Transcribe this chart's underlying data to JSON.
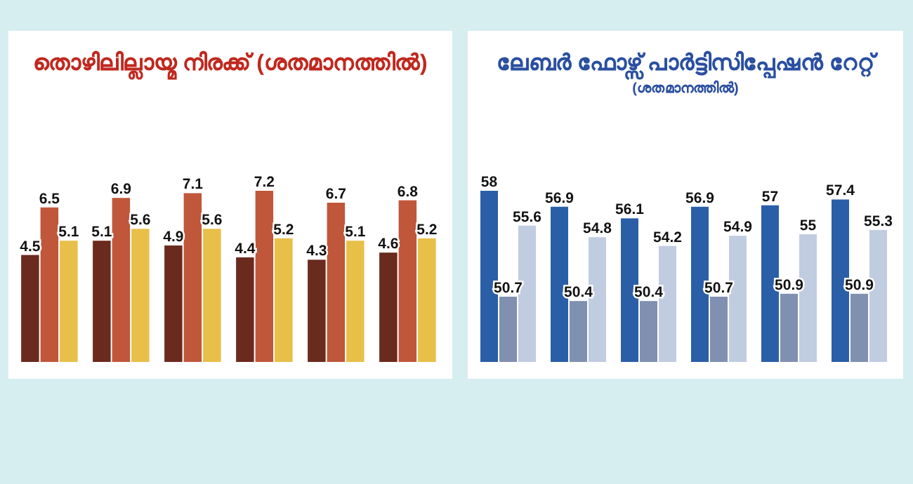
{
  "chart_data": [
    {
      "type": "bar",
      "title": "തൊഴിലില്ലായ്മ നിരക്ക് (ശതമാനത്തിൽ)",
      "categories": [
        null,
        null,
        null,
        null,
        null,
        null
      ],
      "ylim": [
        0,
        7.2
      ],
      "tick_labels": false,
      "data_labels": true,
      "series": [
        {
          "color": "#6b2a1e",
          "values": [
            4.5,
            5.1,
            4.9,
            4.4,
            4.3,
            4.6
          ]
        },
        {
          "color": "#c0573a",
          "values": [
            6.5,
            6.9,
            7.1,
            7.2,
            6.7,
            6.8
          ]
        },
        {
          "color": "#e8bf48",
          "values": [
            5.1,
            5.6,
            5.6,
            5.2,
            5.1,
            5.2
          ]
        }
      ]
    },
    {
      "type": "bar",
      "title": "ലേബർ ഫോഴ്സ് പാർട്ടിസിപ്പേഷൻ റേറ്റ്",
      "subtitle": "(ശതമാനത്തിൽ)",
      "categories": [
        null,
        null,
        null,
        null,
        null,
        null
      ],
      "ylim": [
        46.2,
        58
      ],
      "tick_labels": false,
      "data_labels": true,
      "series": [
        {
          "color": "#2a5fa8",
          "values": [
            58,
            56.9,
            56.1,
            56.9,
            57,
            57.4
          ]
        },
        {
          "color": "#8090b0",
          "values": [
            50.7,
            50.4,
            50.4,
            50.7,
            50.9,
            50.9
          ]
        },
        {
          "color": "#c0cce0",
          "values": [
            55.6,
            54.8,
            54.2,
            54.9,
            55,
            55.3
          ]
        }
      ]
    }
  ]
}
